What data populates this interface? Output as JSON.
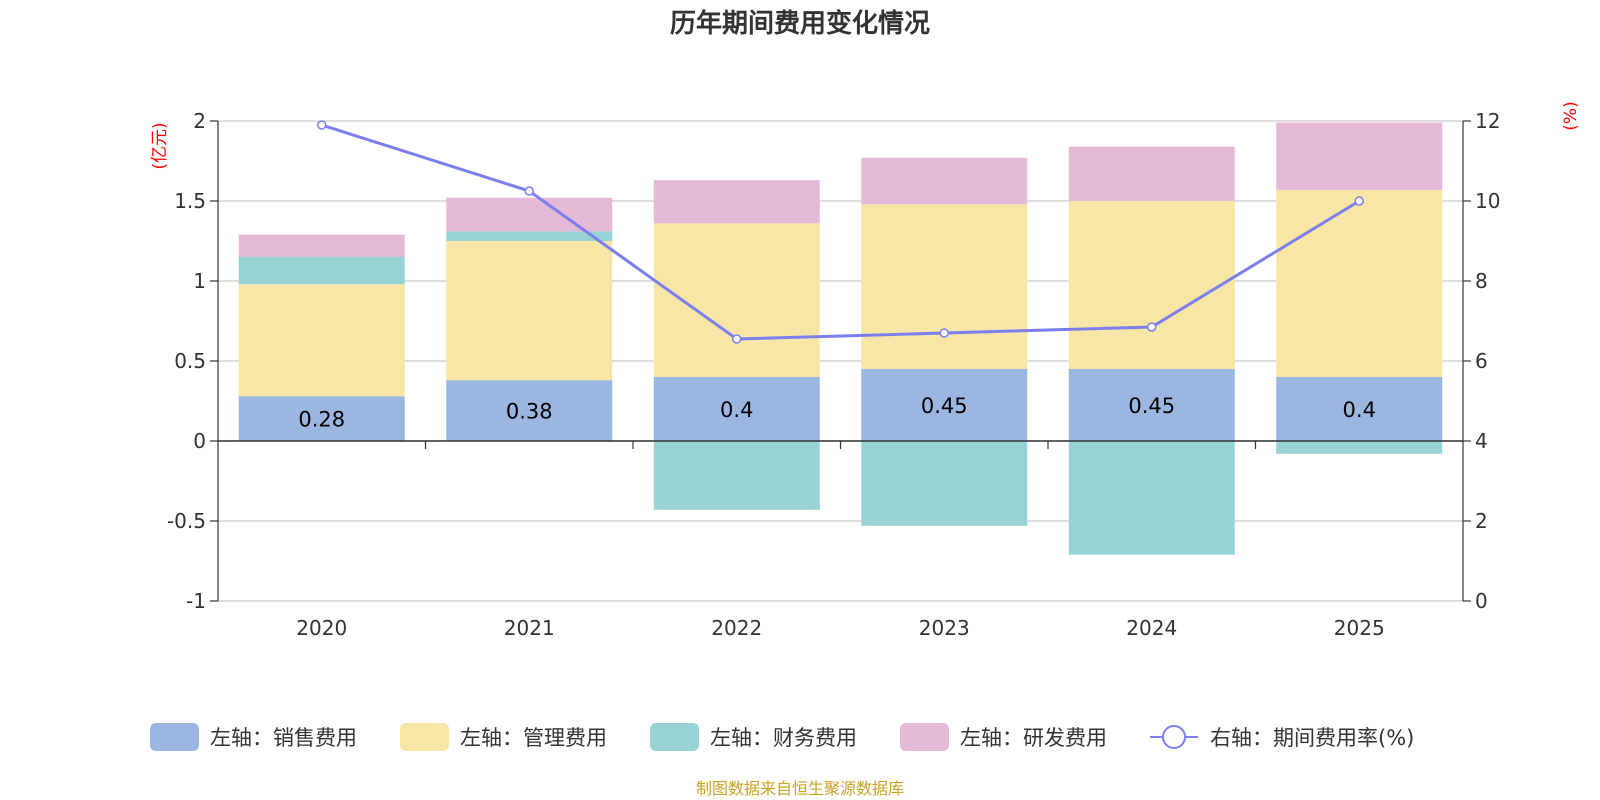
{
  "colors": {
    "sales": "#9bb6e0",
    "admin": "#f8e6a6",
    "finance": "#97d3d4",
    "rnd": "#e6b8d8",
    "rate": "#7b7fee",
    "unit": "#ff0000",
    "source": "#c9a227"
  },
  "chart_data": {
    "type": "bar",
    "stacked": true,
    "title": "历年期间费用变化情况",
    "categories": [
      "2020",
      "2021",
      "2022",
      "2023",
      "2024",
      "2025"
    ],
    "series": [
      {
        "key": "sales",
        "name": "左轴：销售费用",
        "axis": "left",
        "values": [
          0.28,
          0.38,
          0.4,
          0.45,
          0.45,
          0.4
        ],
        "show_labels": true
      },
      {
        "key": "admin",
        "name": "左轴：管理费用",
        "axis": "left",
        "values": [
          0.7,
          0.87,
          0.96,
          1.03,
          1.05,
          1.17
        ]
      },
      {
        "key": "finance",
        "name": "左轴：财务费用",
        "axis": "left",
        "values": [
          0.17,
          0.06,
          -0.43,
          -0.53,
          -0.71,
          -0.08
        ]
      },
      {
        "key": "rnd",
        "name": "左轴：研发费用",
        "axis": "left",
        "values": [
          0.14,
          0.21,
          0.27,
          0.29,
          0.34,
          0.42
        ]
      },
      {
        "key": "rate",
        "name": "右轴：期间费用率(%)",
        "axis": "right",
        "type": "line",
        "values": [
          11.9,
          10.25,
          6.55,
          6.7,
          6.85,
          10.0
        ]
      }
    ],
    "left_axis": {
      "unit": "(亿元)",
      "ylim": [
        -1,
        2
      ],
      "ticks": [
        -1,
        -0.5,
        0,
        0.5,
        1,
        1.5,
        2
      ],
      "tick_labels": [
        "-1",
        "-0.5",
        "0",
        "0.5",
        "1",
        "1.5",
        "2"
      ]
    },
    "right_axis": {
      "unit": "(%)",
      "ylim": [
        0,
        12
      ],
      "ticks": [
        0,
        2,
        4,
        6,
        8,
        10,
        12
      ],
      "tick_labels": [
        "0",
        "2",
        "4",
        "6",
        "8",
        "10",
        "12"
      ]
    },
    "grid": true,
    "legend_position": "bottom",
    "source": "制图数据来自恒生聚源数据库"
  }
}
